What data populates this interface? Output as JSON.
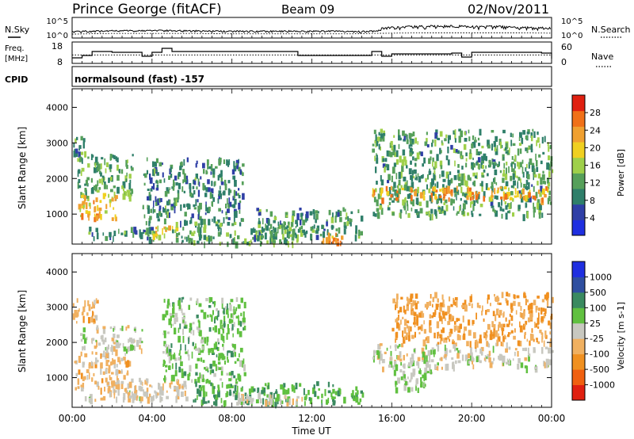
{
  "header": {
    "station": "Prince George (fitACF)",
    "beam": "Beam 09",
    "date": "02/Nov/2011"
  },
  "noise_panel": {
    "left_label": "N.Sky",
    "left_ticks": [
      "10^5",
      "10^0"
    ],
    "right_label": "N.Search",
    "right_ticks": [
      "10^5",
      "10^0"
    ]
  },
  "freq_panel": {
    "left_label_1": "Freq.",
    "left_label_2": "[MHz]",
    "left_ticks": [
      "18",
      "8"
    ],
    "right_label": "Nave",
    "right_ticks": [
      "60",
      "0"
    ]
  },
  "cpid": {
    "label": "CPID",
    "value": "normalsound (fast) -157"
  },
  "xaxis": {
    "label": "Time UT",
    "ticks": [
      "00:00",
      "04:00",
      "08:00",
      "12:00",
      "16:00",
      "20:00",
      "00:00"
    ]
  },
  "colors": {
    "power": [
      "#1f2fe0",
      "#2f3fa6",
      "#2f7f6a",
      "#56a05a",
      "#9fd04a",
      "#f0d020",
      "#f0a030",
      "#f07018",
      "#e02010"
    ],
    "velocity": [
      "#e02010",
      "#f06010",
      "#f09020",
      "#f0b060",
      "#c8c8c0",
      "#60c040",
      "#3a8a60",
      "#2f4fa0",
      "#1f2fe0"
    ]
  },
  "chart_data": [
    {
      "type": "line",
      "title": "N.Sky / N.Search",
      "x_range_hours": [
        0,
        24
      ],
      "y_scale": "log",
      "ylim": [
        1,
        100000
      ],
      "series": [
        {
          "name": "N.Sky",
          "x": [
            0,
            1,
            2,
            3,
            4,
            5,
            6,
            7,
            8,
            9,
            10,
            11,
            12,
            13,
            14,
            15,
            16,
            17,
            18,
            19,
            20,
            21,
            22,
            23,
            24
          ],
          "values": [
            20,
            30,
            40,
            40,
            40,
            50,
            40,
            30,
            30,
            30,
            30,
            30,
            30,
            30,
            20,
            30,
            100,
            200,
            300,
            300,
            200,
            200,
            150,
            100,
            60
          ]
        },
        {
          "name": "N.Search",
          "x": [
            0,
            2,
            4,
            6,
            8,
            10,
            12,
            14,
            16,
            18,
            20,
            22,
            24
          ],
          "values": [
            5,
            8,
            8,
            8,
            6,
            6,
            6,
            6,
            10,
            12,
            12,
            12,
            10
          ]
        }
      ]
    },
    {
      "type": "line",
      "title": "Freq / Nave",
      "x_range_hours": [
        0,
        24
      ],
      "ylim": [
        8,
        18
      ],
      "ylim_right": [
        0,
        60
      ],
      "series": [
        {
          "name": "Freq.",
          "x": [
            0,
            0.5,
            1,
            2,
            3.5,
            4,
            4.5,
            5,
            9,
            11,
            11.3,
            15,
            15.5,
            16,
            19,
            19.5,
            20,
            23.5,
            24
          ],
          "values": [
            10.5,
            12,
            14.5,
            14,
            11.5,
            14,
            16.5,
            14.5,
            14.5,
            14.5,
            12,
            14.5,
            11.5,
            13,
            13.5,
            11,
            14,
            13.5,
            10
          ]
        },
        {
          "name": "Nave",
          "x": [
            0,
            24
          ],
          "values": [
            26,
            26
          ]
        }
      ]
    },
    {
      "type": "heatmap",
      "title": "Power [dB]",
      "xlabel": "Time UT",
      "ylabel": "Slant Range [km]",
      "xlim": [
        0,
        24
      ],
      "ylim": [
        180,
        4500
      ],
      "yticks": [
        1000,
        2000,
        3000,
        4000
      ],
      "colorbar": {
        "label": "Power [dB]",
        "ticks": [
          "28",
          "24",
          "20",
          "16",
          "12",
          "8",
          "4"
        ],
        "range": [
          0,
          30
        ]
      },
      "regions": [
        {
          "t0": 0.0,
          "t1": 0.6,
          "r0": 2700,
          "r1": 3200,
          "v": 10
        },
        {
          "t0": 0.2,
          "t1": 3.0,
          "r0": 1500,
          "r1": 2700,
          "v": 12
        },
        {
          "t0": 0.3,
          "t1": 2.2,
          "r0": 900,
          "r1": 1600,
          "v": 20
        },
        {
          "t0": 0.8,
          "t1": 4.2,
          "r0": 350,
          "r1": 650,
          "v": 10
        },
        {
          "t0": 3.5,
          "t1": 8.5,
          "r0": 800,
          "r1": 2600,
          "v": 9
        },
        {
          "t0": 4.0,
          "t1": 5.3,
          "r0": 380,
          "r1": 700,
          "v": 18
        },
        {
          "t0": 5.0,
          "t1": 11.5,
          "r0": 220,
          "r1": 800,
          "v": 12
        },
        {
          "t0": 9.0,
          "t1": 14.5,
          "r0": 400,
          "r1": 1200,
          "v": 10
        },
        {
          "t0": 12.3,
          "t1": 13.5,
          "r0": 200,
          "r1": 500,
          "v": 22
        },
        {
          "t0": 15.0,
          "t1": 24.0,
          "r0": 1000,
          "r1": 3400,
          "v": 11
        },
        {
          "t0": 15.0,
          "t1": 24.0,
          "r0": 1450,
          "r1": 1800,
          "v": 22
        }
      ]
    },
    {
      "type": "heatmap",
      "title": "Velocity [m s-1]",
      "xlabel": "Time UT",
      "ylabel": "Slant Range [km]",
      "xlim": [
        0,
        24
      ],
      "ylim": [
        180,
        4500
      ],
      "yticks": [
        1000,
        2000,
        3000,
        4000
      ],
      "colorbar": {
        "label": "Velocity [m s-1]",
        "ticks": [
          "1000",
          "500",
          "100",
          "25",
          "-25",
          "-100",
          "-500",
          "-1000"
        ],
        "range": [
          -1000,
          1000
        ]
      },
      "regions": [
        {
          "t0": 0.0,
          "t1": 1.3,
          "r0": 2600,
          "r1": 3300,
          "v": -250
        },
        {
          "t0": 0.1,
          "t1": 2.8,
          "r0": 700,
          "r1": 1800,
          "v": -200
        },
        {
          "t0": 0.3,
          "t1": 3.5,
          "r0": 1800,
          "r1": 2500,
          "v": 0
        },
        {
          "t0": 0.6,
          "t1": 4.5,
          "r0": 400,
          "r1": 650,
          "v": 0
        },
        {
          "t0": 2.0,
          "t1": 6.0,
          "r0": 450,
          "r1": 1000,
          "v": -100
        },
        {
          "t0": 4.5,
          "t1": 8.6,
          "r0": 900,
          "r1": 3300,
          "v": 200
        },
        {
          "t0": 6.0,
          "t1": 14.5,
          "r0": 300,
          "r1": 900,
          "v": 300
        },
        {
          "t0": 8.0,
          "t1": 11.5,
          "r0": 300,
          "r1": 600,
          "v": 0
        },
        {
          "t0": 15.0,
          "t1": 24.0,
          "r0": 1300,
          "r1": 2000,
          "v": 0
        },
        {
          "t0": 16.0,
          "t1": 24.0,
          "r0": 2000,
          "r1": 3450,
          "v": -300
        },
        {
          "t0": 16.0,
          "t1": 18.0,
          "r0": 700,
          "r1": 1300,
          "v": 150
        }
      ]
    }
  ]
}
